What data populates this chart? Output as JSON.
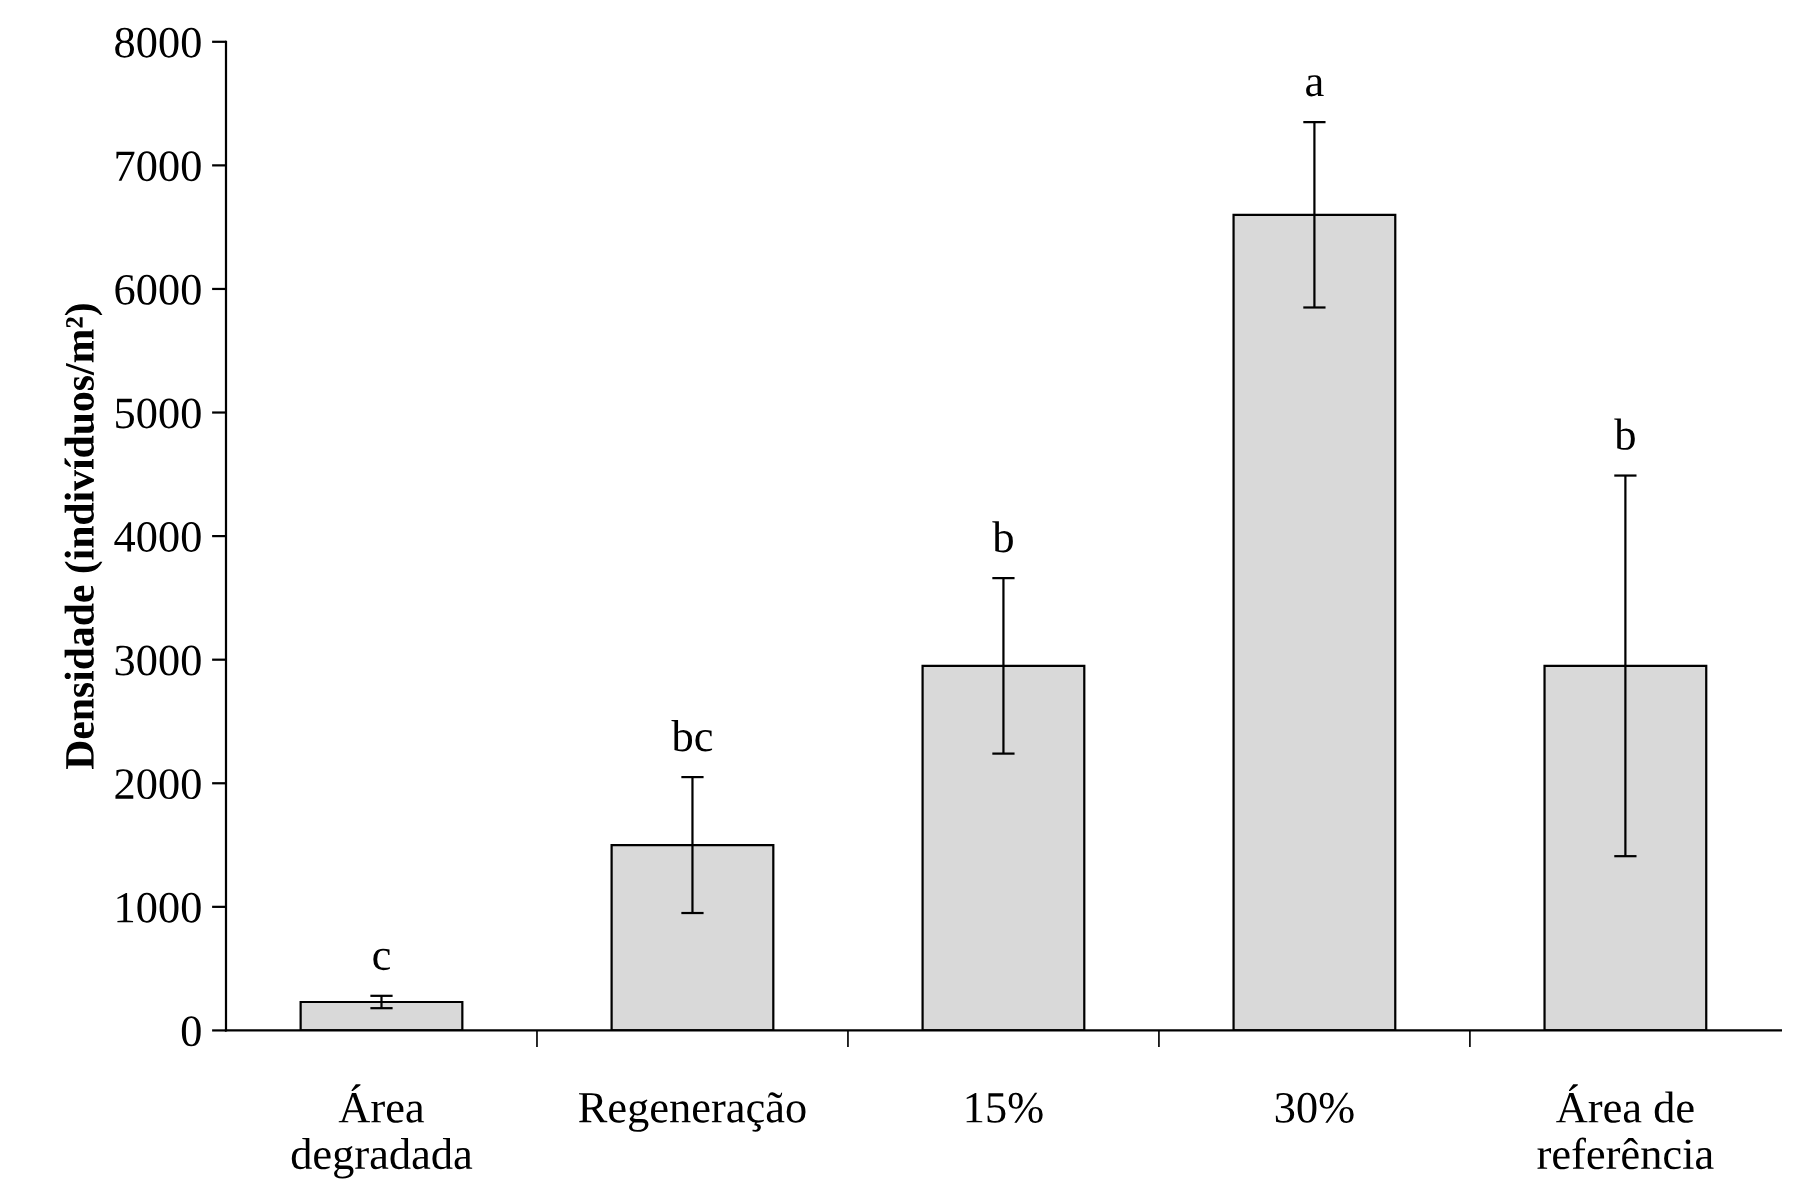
{
  "chart_data": {
    "type": "bar",
    "ylabel": "Densidade (indivíduos/m²)",
    "categories": [
      "Área\ndegradada",
      "Regeneração",
      "15%",
      "30%",
      "Área de\nreferência"
    ],
    "values": [
      230,
      1500,
      2950,
      6600,
      2950
    ],
    "errors": [
      50,
      550,
      710,
      750,
      1540
    ],
    "color": "#d9d9d9",
    "ylim": [
      0,
      8000
    ],
    "yticks": [
      0,
      1000,
      2000,
      3000,
      4000,
      5000,
      6000,
      7000,
      8000
    ],
    "grid": false,
    "legend": false,
    "annotations": [
      {
        "text": "c",
        "x": "Área\ndegradada",
        "y": 280
      },
      {
        "text": "bc",
        "x": "Regeneração",
        "y": 2050
      },
      {
        "text": "b",
        "x": "15%",
        "y": 3660
      },
      {
        "text": "a",
        "x": "30%",
        "y": 7350
      },
      {
        "text": "b",
        "x": "Área de\nreferência",
        "y": 4490
      }
    ]
  }
}
